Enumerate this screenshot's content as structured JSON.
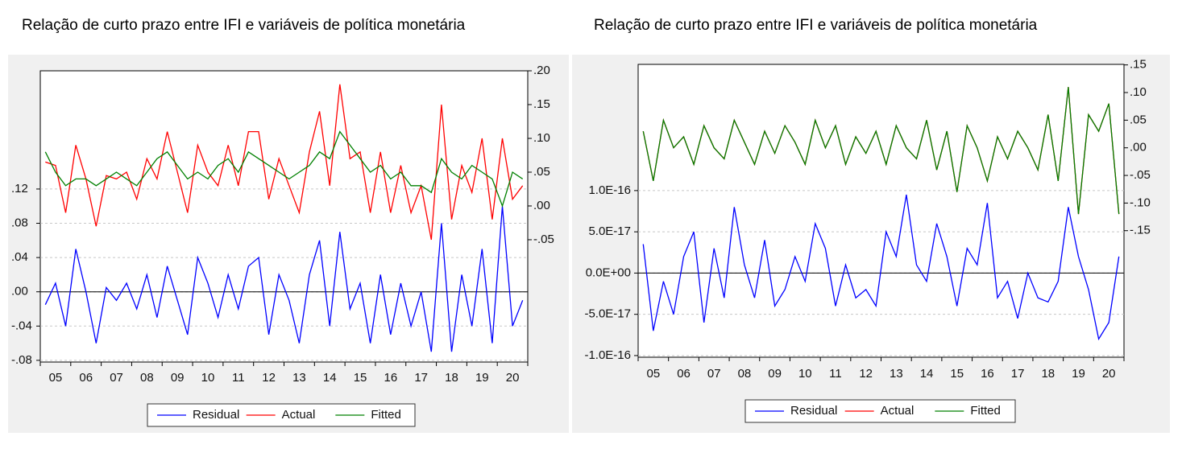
{
  "chart_data": [
    {
      "type": "line",
      "title": "Relação de curto prazo entre IFI e variáveis de política monetária",
      "categories": [
        null,
        "05",
        null,
        null,
        "06",
        null,
        null,
        "07",
        null,
        null,
        "08",
        null,
        null,
        "09",
        null,
        null,
        "10",
        null,
        null,
        "11",
        null,
        null,
        "12",
        null,
        null,
        "13",
        null,
        null,
        "14",
        null,
        null,
        "15",
        null,
        null,
        "16",
        null,
        null,
        "17",
        null,
        null,
        "18",
        null,
        null,
        "19",
        null,
        null,
        "20",
        null
      ],
      "series": [
        {
          "name": "Residual",
          "color": "#0000ff",
          "axis": "y",
          "values": [
            -0.015,
            0.01,
            -0.04,
            0.05,
            0.0,
            -0.06,
            0.005,
            -0.01,
            0.01,
            -0.02,
            0.02,
            -0.03,
            0.03,
            -0.01,
            -0.05,
            0.04,
            0.01,
            -0.03,
            0.02,
            -0.02,
            0.03,
            0.04,
            -0.05,
            0.02,
            -0.01,
            -0.06,
            0.02,
            0.06,
            -0.04,
            0.07,
            -0.02,
            0.01,
            -0.06,
            0.02,
            -0.05,
            0.01,
            -0.04,
            0.0,
            -0.07,
            0.08,
            -0.07,
            0.02,
            -0.04,
            0.05,
            -0.06,
            0.1,
            -0.04,
            -0.01
          ]
        },
        {
          "name": "Actual",
          "color": "#ff0000",
          "axis": "y2",
          "values": [
            0.065,
            0.06,
            -0.01,
            0.09,
            0.04,
            -0.03,
            0.045,
            0.04,
            0.05,
            0.01,
            0.07,
            0.04,
            0.11,
            0.05,
            -0.01,
            0.09,
            0.05,
            0.03,
            0.09,
            0.03,
            0.11,
            0.11,
            0.01,
            0.07,
            0.03,
            -0.01,
            0.08,
            0.14,
            0.03,
            0.18,
            0.07,
            0.08,
            -0.01,
            0.08,
            -0.01,
            0.06,
            -0.01,
            0.03,
            -0.05,
            0.15,
            -0.02,
            0.06,
            0.02,
            0.1,
            -0.02,
            0.1,
            0.01,
            0.03
          ]
        },
        {
          "name": "Fitted",
          "color": "#008000",
          "axis": "y2",
          "values": [
            0.08,
            0.05,
            0.03,
            0.04,
            0.04,
            0.03,
            0.04,
            0.05,
            0.04,
            0.03,
            0.05,
            0.07,
            0.08,
            0.06,
            0.04,
            0.05,
            0.04,
            0.06,
            0.07,
            0.05,
            0.08,
            0.07,
            0.06,
            0.05,
            0.04,
            0.05,
            0.06,
            0.08,
            0.07,
            0.11,
            0.09,
            0.07,
            0.05,
            0.06,
            0.04,
            0.05,
            0.03,
            0.03,
            0.02,
            0.07,
            0.05,
            0.04,
            0.06,
            0.05,
            0.04,
            0.0,
            0.05,
            0.04
          ]
        }
      ],
      "ylim": [
        -0.082,
        0.258
      ],
      "yticks": [
        {
          "value": -0.08,
          "label": "-.08"
        },
        {
          "value": -0.04,
          "label": "-.04"
        },
        {
          "value": 0,
          "label": ".00"
        },
        {
          "value": 0.04,
          "label": ".04"
        },
        {
          "value": 0.08,
          "label": ".08"
        },
        {
          "value": 0.12,
          "label": ".12"
        }
      ],
      "y2lim": [
        -0.231,
        0.2
      ],
      "y2ticks": [
        {
          "value": -0.05,
          "label": "-.05"
        },
        {
          "value": 0,
          "label": ".00"
        },
        {
          "value": 0.05,
          "label": ".05"
        },
        {
          "value": 0.1,
          "label": ".10"
        },
        {
          "value": 0.15,
          "label": ".15"
        },
        {
          "value": 0.2,
          "label": ".20"
        }
      ],
      "grid": true,
      "legend": "bottom"
    },
    {
      "type": "line",
      "title": "Relação de curto prazo entre IFI e variáveis de política monetária",
      "categories": [
        null,
        "05",
        null,
        null,
        "06",
        null,
        null,
        "07",
        null,
        null,
        "08",
        null,
        null,
        "09",
        null,
        null,
        "10",
        null,
        null,
        "11",
        null,
        null,
        "12",
        null,
        null,
        "13",
        null,
        null,
        "14",
        null,
        null,
        "15",
        null,
        null,
        "16",
        null,
        null,
        "17",
        null,
        null,
        "18",
        null,
        null,
        "19",
        null,
        null,
        "20",
        null
      ],
      "series": [
        {
          "name": "Residual",
          "color": "#0000ff",
          "axis": "y",
          "values": [
            3.5e-17,
            -7e-17,
            -1e-17,
            -5e-17,
            2e-17,
            5e-17,
            -6e-17,
            3e-17,
            -3e-17,
            8e-17,
            1e-17,
            -3e-17,
            4e-17,
            -4e-17,
            -2e-17,
            2e-17,
            -1e-17,
            6e-17,
            3e-17,
            -4e-17,
            1e-17,
            -3e-17,
            -2e-17,
            -4e-17,
            5e-17,
            2e-17,
            9.5e-17,
            1e-17,
            -1e-17,
            6e-17,
            2e-17,
            -4e-17,
            3e-17,
            1e-17,
            8.5e-17,
            -3e-17,
            -1e-17,
            -5.5e-17,
            0,
            -3e-17,
            -3.5e-17,
            -1e-17,
            8e-17,
            2e-17,
            -2e-17,
            -8e-17,
            -6e-17,
            2e-17
          ]
        },
        {
          "name": "Actual",
          "color": "#ff0000",
          "axis": "y2",
          "values": [
            0.03,
            -0.06,
            0.05,
            0.0,
            0.02,
            -0.03,
            0.04,
            0.0,
            -0.02,
            0.05,
            0.01,
            -0.03,
            0.03,
            -0.01,
            0.04,
            0.01,
            -0.03,
            0.05,
            0.0,
            0.04,
            -0.03,
            0.02,
            -0.01,
            0.03,
            -0.03,
            0.04,
            0.0,
            -0.02,
            0.05,
            -0.04,
            0.03,
            -0.08,
            0.04,
            0.0,
            -0.06,
            0.02,
            -0.02,
            0.03,
            0.0,
            -0.04,
            0.06,
            -0.06,
            0.11,
            -0.12,
            0.06,
            0.03,
            0.08,
            -0.12
          ]
        },
        {
          "name": "Fitted",
          "color": "#008000",
          "axis": "y2",
          "values": [
            0.03,
            -0.06,
            0.05,
            0.0,
            0.02,
            -0.03,
            0.04,
            0.0,
            -0.02,
            0.05,
            0.01,
            -0.03,
            0.03,
            -0.01,
            0.04,
            0.01,
            -0.03,
            0.05,
            0.0,
            0.04,
            -0.03,
            0.02,
            -0.01,
            0.03,
            -0.03,
            0.04,
            0.0,
            -0.02,
            0.05,
            -0.04,
            0.03,
            -0.08,
            0.04,
            0.0,
            -0.06,
            0.02,
            -0.02,
            0.03,
            0.0,
            -0.04,
            0.06,
            -0.06,
            0.11,
            -0.12,
            0.06,
            0.03,
            0.08,
            -0.12
          ]
        }
      ],
      "ylim": [
        -1.02e-16,
        2.53e-16
      ],
      "yticks": [
        {
          "value": -1e-16,
          "label": "-1.0E-16"
        },
        {
          "value": -5e-17,
          "label": "-5.0E-17"
        },
        {
          "value": 0,
          "label": "0.0E+00"
        },
        {
          "value": 5e-17,
          "label": "5.0E-17"
        },
        {
          "value": 1e-16,
          "label": "1.0E-16"
        }
      ],
      "y2lim": [
        -0.379,
        0.151
      ],
      "y2ticks": [
        {
          "value": -0.15,
          "label": "-.15"
        },
        {
          "value": -0.1,
          "label": "-.10"
        },
        {
          "value": -0.05,
          "label": "-.05"
        },
        {
          "value": 0,
          "label": ".00"
        },
        {
          "value": 0.05,
          "label": ".05"
        },
        {
          "value": 0.1,
          "label": ".10"
        },
        {
          "value": 0.15,
          "label": ".15"
        }
      ],
      "grid": true,
      "legend": "bottom"
    }
  ]
}
